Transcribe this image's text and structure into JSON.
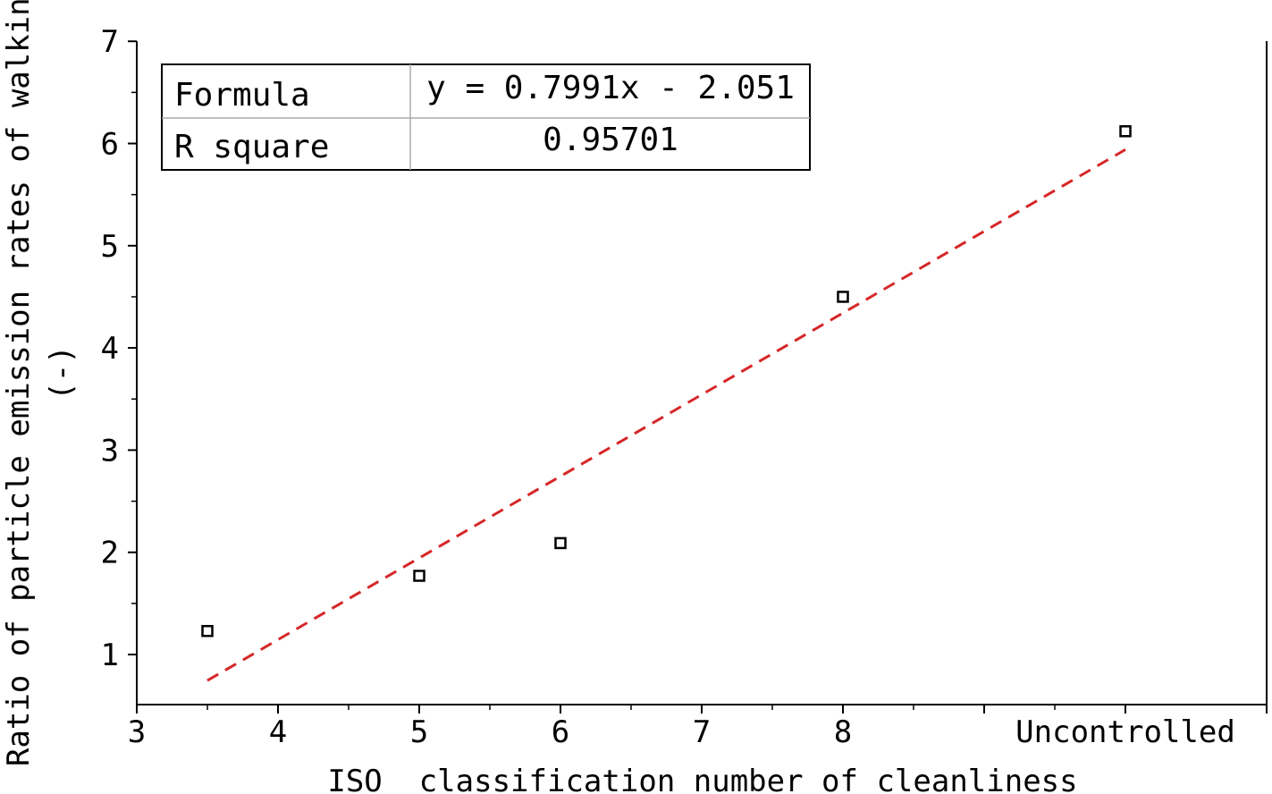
{
  "chart_data": {
    "type": "scatter",
    "xlabel": "ISO  classification number of cleanliness",
    "ylabel_lines": [
      "Ratio of particle emission rates of walking",
      "(-)"
    ],
    "xlim": [
      3,
      10.2
    ],
    "ylim": [
      0.5,
      7
    ],
    "x_ticks": [
      {
        "value": 3,
        "label": "3"
      },
      {
        "value": 4,
        "label": "4"
      },
      {
        "value": 5,
        "label": "5"
      },
      {
        "value": 6,
        "label": "6"
      },
      {
        "value": 7,
        "label": "7"
      },
      {
        "value": 8,
        "label": "8"
      },
      {
        "value": 9,
        "label": ""
      },
      {
        "value": 10,
        "label": "Uncontrolled"
      }
    ],
    "y_ticks": [
      {
        "value": 1,
        "label": "1"
      },
      {
        "value": 2,
        "label": "2"
      },
      {
        "value": 3,
        "label": "3"
      },
      {
        "value": 4,
        "label": "4"
      },
      {
        "value": 5,
        "label": "5"
      },
      {
        "value": 6,
        "label": "6"
      },
      {
        "value": 7,
        "label": "7"
      }
    ],
    "series": [
      {
        "marker": "open-square",
        "color": "#000000",
        "points": [
          {
            "x": 3.5,
            "y": 1.23
          },
          {
            "x": 5,
            "y": 1.77
          },
          {
            "x": 6,
            "y": 2.09
          },
          {
            "x": 8,
            "y": 4.5
          },
          {
            "x": 10,
            "y": 6.12
          }
        ]
      }
    ],
    "fit_line": {
      "color": "#d62728",
      "style": "dashed",
      "slope": 0.7991,
      "intercept": -2.051,
      "x_range": [
        3.5,
        10
      ]
    },
    "stats_table": {
      "rows": [
        {
          "label": "Formula",
          "value": "y = 0.7991x - 2.051"
        },
        {
          "label": "R square",
          "value": "0.95701"
        }
      ]
    },
    "grid": false
  }
}
